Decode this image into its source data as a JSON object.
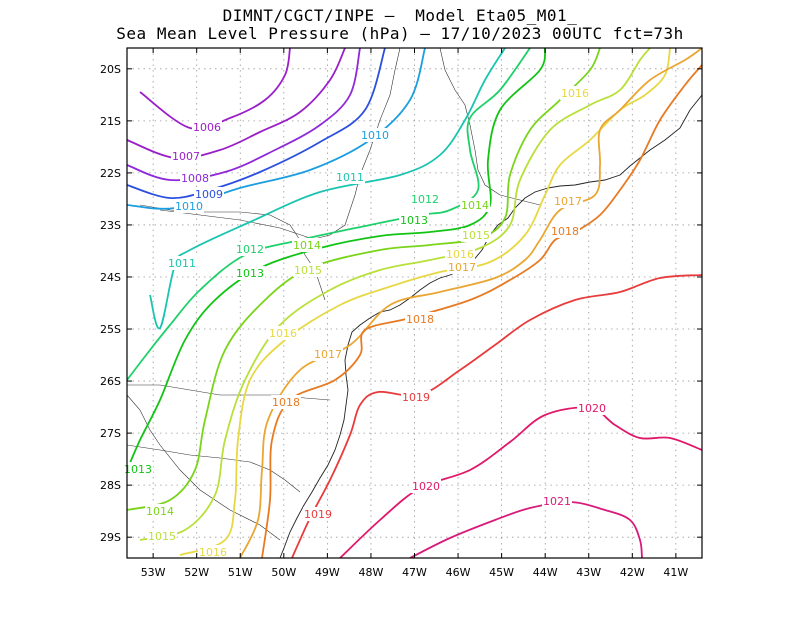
{
  "header": {
    "line1": "DIMNT/CGCT/INPE –  Model Eta05_M01_",
    "line2": "Sea Mean Level Pressure (hPa) – 17/10/2023 00UTC fct=73h"
  },
  "map": {
    "lon_range": [
      -53.6,
      -40.4
    ],
    "lat_range": [
      -29.4,
      -19.6
    ],
    "lat_ticks": [
      "20S",
      "21S",
      "22S",
      "23S",
      "24S",
      "25S",
      "26S",
      "27S",
      "28S",
      "29S"
    ],
    "lon_ticks": [
      "53W",
      "52W",
      "51W",
      "50W",
      "49W",
      "48W",
      "47W",
      "46W",
      "45W",
      "44W",
      "43W",
      "42W",
      "41W"
    ],
    "grid": true,
    "contours": [
      {
        "value": "1006",
        "color": "#9b1fc9"
      },
      {
        "value": "1007",
        "color": "#9b1fc9"
      },
      {
        "value": "1008",
        "color": "#8f28d8"
      },
      {
        "value": "1009",
        "color": "#2b4fe0"
      },
      {
        "value": "1010",
        "color": "#1b9ee0"
      },
      {
        "value": "1011",
        "color": "#1bc4b0"
      },
      {
        "value": "1012",
        "color": "#1ed06a"
      },
      {
        "value": "1013",
        "color": "#11c414"
      },
      {
        "value": "1014",
        "color": "#7ad41a"
      },
      {
        "value": "1015",
        "color": "#b8e03a"
      },
      {
        "value": "1016",
        "color": "#e7d843"
      },
      {
        "value": "1017",
        "color": "#eaa633"
      },
      {
        "value": "1018",
        "color": "#e87a22"
      },
      {
        "value": "1019",
        "color": "#e83c3c"
      },
      {
        "value": "1020",
        "color": "#e0186a"
      },
      {
        "value": "1021",
        "color": "#d81a7a"
      }
    ]
  }
}
